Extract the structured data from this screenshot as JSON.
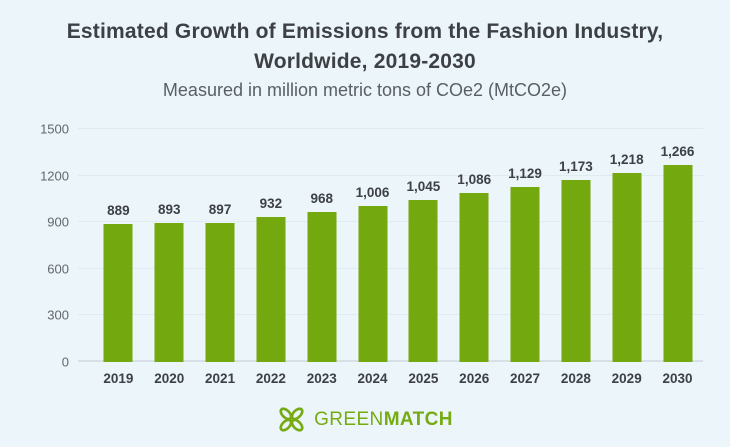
{
  "page": {
    "background": "#ebf5fa"
  },
  "header": {
    "title_line1": "Estimated Growth of Emissions from the Fashion Industry,",
    "title_line2": "Worldwide, 2019-2030",
    "subtitle": "Measured in million metric tons of COe2 (MtCO2e)"
  },
  "chart_data": {
    "type": "bar",
    "title": "Estimated Growth of Emissions from the Fashion Industry, Worldwide, 2019-2030",
    "subtitle": "Measured in million metric tons of COe2 (MtCO2e)",
    "categories": [
      "2019",
      "2020",
      "2021",
      "2022",
      "2023",
      "2024",
      "2025",
      "2026",
      "2027",
      "2028",
      "2029",
      "2030"
    ],
    "values": [
      889,
      893,
      897,
      932,
      968,
      1006,
      1045,
      1086,
      1129,
      1173,
      1218,
      1266
    ],
    "value_labels": [
      "889",
      "893",
      "897",
      "932",
      "968",
      "1,006",
      "1,045",
      "1,086",
      "1,129",
      "1,173",
      "1,218",
      "1,266"
    ],
    "xlabel": "",
    "ylabel": "",
    "ylim": [
      0,
      1500
    ],
    "yticks": [
      0,
      300,
      600,
      900,
      1200,
      1500
    ],
    "grid": true,
    "legend_position": "none",
    "bar_color": "#73a80e",
    "gridline_color": "#dfebf1",
    "label_color": "#3d4145"
  },
  "footer": {
    "brand_first": "GREEN",
    "brand_second": "MATCH",
    "brand_color": "#76ab12",
    "logo_icon": "four-leaf-clover"
  }
}
